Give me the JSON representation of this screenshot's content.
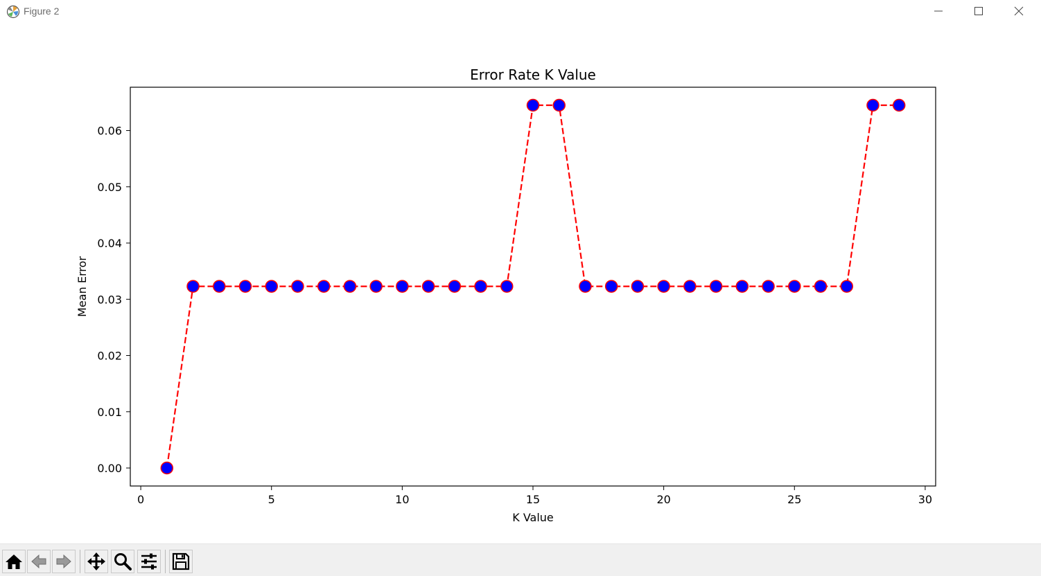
{
  "window": {
    "title": "Figure 2",
    "controls": [
      "minimize-icon",
      "maximize-icon",
      "close-icon"
    ]
  },
  "toolbar": {
    "buttons": [
      "home-icon",
      "back-icon",
      "forward-icon",
      "pan-icon",
      "zoom-icon",
      "configure-subplots-icon",
      "save-icon"
    ]
  },
  "chart_data": {
    "type": "line",
    "title": "Error Rate K Value",
    "xlabel": "K Value",
    "ylabel": "Mean Error",
    "xlim": [
      -0.4,
      30.4
    ],
    "ylim": [
      -0.0032,
      0.0677
    ],
    "xticks": [
      0,
      5,
      10,
      15,
      20,
      25,
      30
    ],
    "yticks": [
      0.0,
      0.01,
      0.02,
      0.03,
      0.04,
      0.05,
      0.06
    ],
    "ytick_labels": [
      "0.00",
      "0.01",
      "0.02",
      "0.03",
      "0.04",
      "0.05",
      "0.06"
    ],
    "grid": false,
    "line_color": "#ff0000",
    "line_style": "dashed",
    "marker": "circle",
    "marker_face_color": "#0000ff",
    "marker_edge_color": "#ff0000",
    "x": [
      1,
      2,
      3,
      4,
      5,
      6,
      7,
      8,
      9,
      10,
      11,
      12,
      13,
      14,
      15,
      16,
      17,
      18,
      19,
      20,
      21,
      22,
      23,
      24,
      25,
      26,
      27,
      28,
      29
    ],
    "y": [
      0.0,
      0.0323,
      0.0323,
      0.0323,
      0.0323,
      0.0323,
      0.0323,
      0.0323,
      0.0323,
      0.0323,
      0.0323,
      0.0323,
      0.0323,
      0.0323,
      0.0645,
      0.0645,
      0.0323,
      0.0323,
      0.0323,
      0.0323,
      0.0323,
      0.0323,
      0.0323,
      0.0323,
      0.0323,
      0.0323,
      0.0323,
      0.0645,
      0.0645
    ]
  }
}
